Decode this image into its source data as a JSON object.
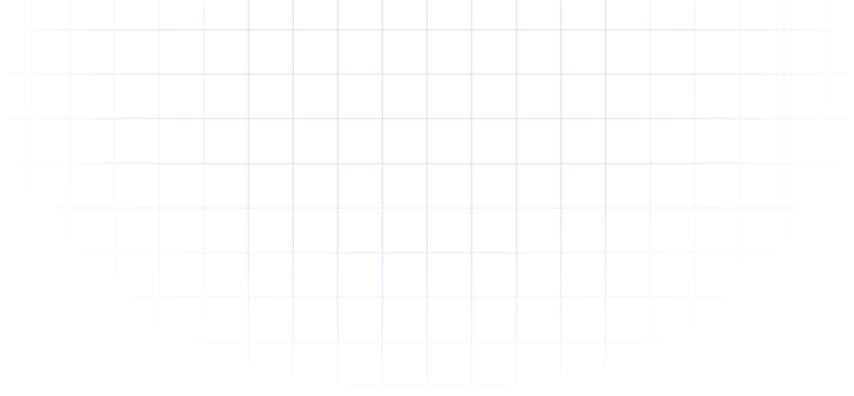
{
  "background_color": "#ffffff",
  "grid": {
    "line_color": "#c9c6ea",
    "line_color_light": "#e2e2ee",
    "icon": "grid-pattern"
  }
}
